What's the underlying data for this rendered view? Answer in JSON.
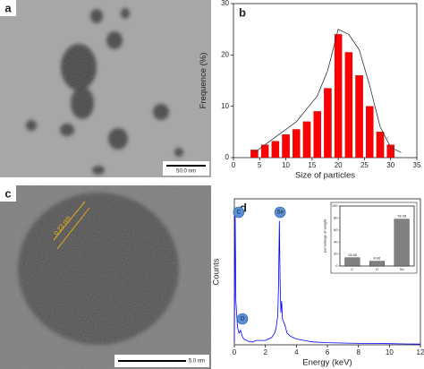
{
  "panels": {
    "a": {
      "label": "a",
      "scale_bar": "50.0 nm"
    },
    "c": {
      "label": "c",
      "scale_bar": "5.0 nm",
      "annotation": "0.23 nm"
    }
  },
  "chart_data": [
    {
      "type": "bar",
      "label": "b",
      "xlabel": "Size of particles",
      "ylabel": "Frequence (%)",
      "color": "#ff0000",
      "x": [
        4,
        6,
        8,
        10,
        12,
        14,
        16,
        18,
        20,
        22,
        24,
        26,
        28,
        30
      ],
      "values": [
        1.5,
        2.5,
        3.2,
        4.5,
        5.5,
        7,
        9,
        13.5,
        24,
        20.5,
        16,
        10,
        5,
        2.5
      ],
      "curve": {
        "x": [
          4,
          8,
          12,
          16,
          18,
          20,
          22,
          24,
          26,
          28,
          30,
          32
        ],
        "values": [
          1,
          4,
          7,
          12,
          17,
          25,
          24,
          21,
          14,
          6,
          2,
          1
        ]
      },
      "xlim": [
        0,
        35
      ],
      "xticks": [
        0,
        5,
        10,
        15,
        20,
        25,
        30,
        35
      ],
      "ylim": [
        0,
        30
      ],
      "yticks": [
        0,
        10,
        20,
        30
      ]
    },
    {
      "type": "line",
      "label": "d",
      "xlabel": "Energy (keV)",
      "ylabel": "Counts",
      "color": "#0000ff",
      "x": [
        0,
        0.05,
        0.1,
        0.2,
        0.3,
        0.4,
        0.5,
        0.6,
        0.8,
        1.0,
        1.2,
        1.4,
        1.6,
        1.8,
        2.0,
        2.2,
        2.4,
        2.6,
        2.7,
        2.8,
        2.85,
        2.9,
        2.95,
        3.0,
        3.05,
        3.1,
        3.2,
        3.3,
        3.4,
        3.6,
        3.8,
        4.0,
        4.5,
        5,
        6,
        7,
        8,
        9,
        10,
        11,
        12
      ],
      "values": [
        2,
        92,
        30,
        12,
        8,
        10,
        6,
        4,
        3,
        2,
        2,
        3,
        3,
        3,
        3,
        4,
        5,
        8,
        12,
        20,
        40,
        85,
        45,
        22,
        30,
        18,
        15,
        12,
        8,
        6,
        5,
        4,
        3,
        2,
        1.5,
        1.2,
        1,
        1,
        0.8,
        0.6,
        0.5
      ],
      "peaks": [
        {
          "label": "C",
          "x": 0.28
        },
        {
          "label": "Se",
          "x": 2.95
        },
        {
          "label": "O",
          "x": 0.52
        }
      ],
      "xlim": [
        0,
        12
      ],
      "xticks": [
        0,
        2,
        4,
        6,
        8,
        10,
        12
      ],
      "ylim": [
        0,
        100
      ]
    },
    {
      "type": "bar",
      "ylabel": "percentage of weight",
      "color": "#808080",
      "categories": [
        "C",
        "O",
        "Se"
      ],
      "values": [
        13.86,
        8.06,
        78.08
      ],
      "value_labels": [
        "13.86",
        "8.06",
        "78.08"
      ],
      "ylim": [
        0,
        100
      ],
      "yticks": [
        0,
        20,
        40,
        60,
        80,
        100
      ]
    }
  ]
}
